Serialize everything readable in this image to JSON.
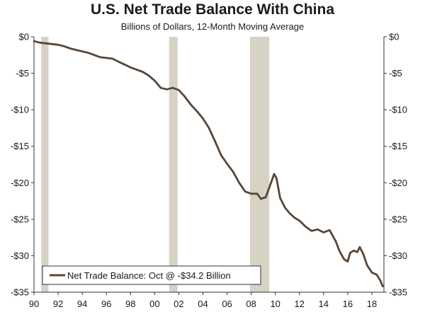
{
  "colors": {
    "line": "#574637",
    "recession": "#d6d2c4",
    "axis": "#333333"
  },
  "chart_data": {
    "type": "line",
    "title": "U.S. Net Trade Balance With China",
    "subtitle": "Billions of Dollars, 12-Month Moving Average",
    "xlabel": "",
    "ylabel": "",
    "xlim": [
      1990,
      2019
    ],
    "ylim": [
      -35,
      0
    ],
    "grid": false,
    "x_ticks": [
      1990,
      1992,
      1994,
      1996,
      1998,
      2000,
      2002,
      2004,
      2006,
      2008,
      2010,
      2012,
      2014,
      2016,
      2018
    ],
    "x_tick_labels": [
      "90",
      "92",
      "94",
      "96",
      "98",
      "00",
      "02",
      "04",
      "06",
      "08",
      "10",
      "12",
      "14",
      "16",
      "18"
    ],
    "y_ticks": [
      0,
      -5,
      -10,
      -15,
      -20,
      -25,
      -30,
      -35
    ],
    "y_tick_labels": [
      "$0",
      "-$5",
      "-$10",
      "-$15",
      "-$20",
      "-$25",
      "-$30",
      "-$35"
    ],
    "recessions": [
      {
        "start": 1990.6,
        "end": 1991.2
      },
      {
        "start": 2001.2,
        "end": 2001.9
      },
      {
        "start": 2007.9,
        "end": 2009.5
      }
    ],
    "legend": {
      "position": "bottom-left",
      "label": "Net Trade Balance: Oct @ -$34.2 Billion"
    },
    "series": [
      {
        "name": "Net Trade Balance",
        "x": [
          1990.0,
          1990.5,
          1991.0,
          1991.5,
          1992.0,
          1992.5,
          1993.0,
          1993.5,
          1994.0,
          1994.5,
          1995.0,
          1995.5,
          1996.0,
          1996.5,
          1997.0,
          1997.5,
          1998.0,
          1998.5,
          1999.0,
          1999.5,
          2000.0,
          2000.5,
          2001.0,
          2001.5,
          2002.0,
          2002.5,
          2003.0,
          2003.5,
          2004.0,
          2004.5,
          2005.0,
          2005.5,
          2006.0,
          2006.5,
          2007.0,
          2007.5,
          2008.0,
          2008.5,
          2008.8,
          2009.2,
          2009.6,
          2009.9,
          2010.1,
          2010.4,
          2010.8,
          2011.2,
          2011.6,
          2012.0,
          2012.5,
          2013.0,
          2013.5,
          2014.0,
          2014.5,
          2015.0,
          2015.3,
          2015.7,
          2016.0,
          2016.2,
          2016.5,
          2016.8,
          2017.0,
          2017.3,
          2017.6,
          2018.0,
          2018.4,
          2018.7,
          2018.9
        ],
        "values": [
          -0.6,
          -0.8,
          -0.9,
          -1.0,
          -1.1,
          -1.3,
          -1.6,
          -1.8,
          -2.0,
          -2.2,
          -2.5,
          -2.8,
          -2.9,
          -3.0,
          -3.4,
          -3.8,
          -4.2,
          -4.5,
          -4.8,
          -5.3,
          -6.0,
          -7.0,
          -7.2,
          -7.0,
          -7.3,
          -8.2,
          -9.3,
          -10.2,
          -11.2,
          -12.5,
          -14.3,
          -16.2,
          -17.4,
          -18.5,
          -20.0,
          -21.2,
          -21.5,
          -21.5,
          -22.2,
          -22.0,
          -20.2,
          -18.8,
          -19.4,
          -22.1,
          -23.4,
          -24.2,
          -24.8,
          -25.2,
          -26.0,
          -26.6,
          -26.4,
          -26.8,
          -26.5,
          -28.0,
          -29.3,
          -30.5,
          -30.8,
          -29.6,
          -29.3,
          -29.5,
          -28.8,
          -29.8,
          -31.3,
          -32.3,
          -32.6,
          -33.4,
          -34.2
        ]
      }
    ]
  }
}
